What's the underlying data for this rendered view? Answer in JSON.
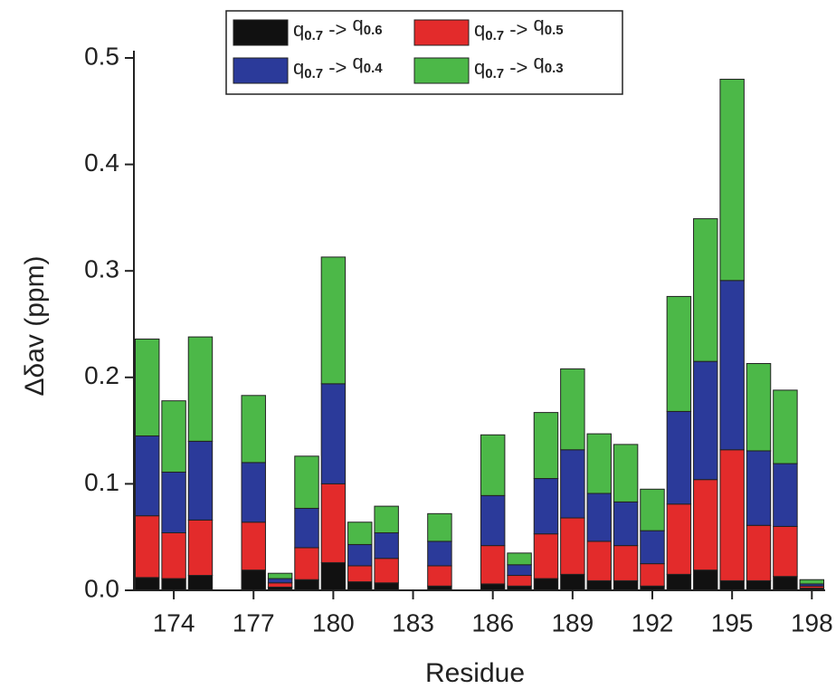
{
  "chart_data": {
    "type": "bar",
    "stacked": true,
    "x_label": "Residue",
    "y_label": "Δδav (ppm)",
    "x": [
      173,
      174,
      175,
      177,
      178,
      179,
      180,
      181,
      182,
      184,
      186,
      187,
      188,
      189,
      190,
      191,
      192,
      193,
      194,
      195,
      196,
      197,
      198
    ],
    "series": [
      {
        "name": "q0.7 -> q0.6",
        "color": "#111111",
        "values": [
          0.012,
          0.011,
          0.014,
          0.019,
          0.003,
          0.01,
          0.026,
          0.008,
          0.007,
          0.004,
          0.006,
          0.004,
          0.011,
          0.015,
          0.009,
          0.009,
          0.004,
          0.015,
          0.019,
          0.009,
          0.009,
          0.013,
          0.002
        ]
      },
      {
        "name": "q0.7 -> q0.5",
        "color": "#e32b2b",
        "values": [
          0.058,
          0.043,
          0.052,
          0.045,
          0.004,
          0.03,
          0.074,
          0.015,
          0.023,
          0.019,
          0.036,
          0.01,
          0.042,
          0.053,
          0.037,
          0.033,
          0.021,
          0.066,
          0.085,
          0.123,
          0.052,
          0.047,
          0.002
        ]
      },
      {
        "name": "q0.7 -> q0.4",
        "color": "#2b3a9a",
        "values": [
          0.075,
          0.057,
          0.074,
          0.056,
          0.004,
          0.037,
          0.094,
          0.02,
          0.024,
          0.023,
          0.047,
          0.01,
          0.052,
          0.064,
          0.045,
          0.041,
          0.031,
          0.087,
          0.111,
          0.159,
          0.07,
          0.059,
          0.002
        ]
      },
      {
        "name": "q0.7 -> q0.3",
        "color": "#4cb848",
        "values": [
          0.091,
          0.067,
          0.098,
          0.063,
          0.005,
          0.049,
          0.119,
          0.021,
          0.025,
          0.026,
          0.057,
          0.011,
          0.062,
          0.076,
          0.056,
          0.054,
          0.039,
          0.108,
          0.134,
          0.189,
          0.082,
          0.069,
          0.004
        ]
      }
    ],
    "xlim": [
      172.5,
      198.5
    ],
    "xticks": [
      174,
      177,
      180,
      183,
      186,
      189,
      192,
      195,
      198
    ],
    "ylim": [
      0,
      0.5
    ],
    "yticks": [
      {
        "value": 0,
        "label": "0.0"
      },
      0.1,
      0.2,
      0.3,
      0.4,
      0.5
    ],
    "grid": false,
    "legend": "top"
  }
}
